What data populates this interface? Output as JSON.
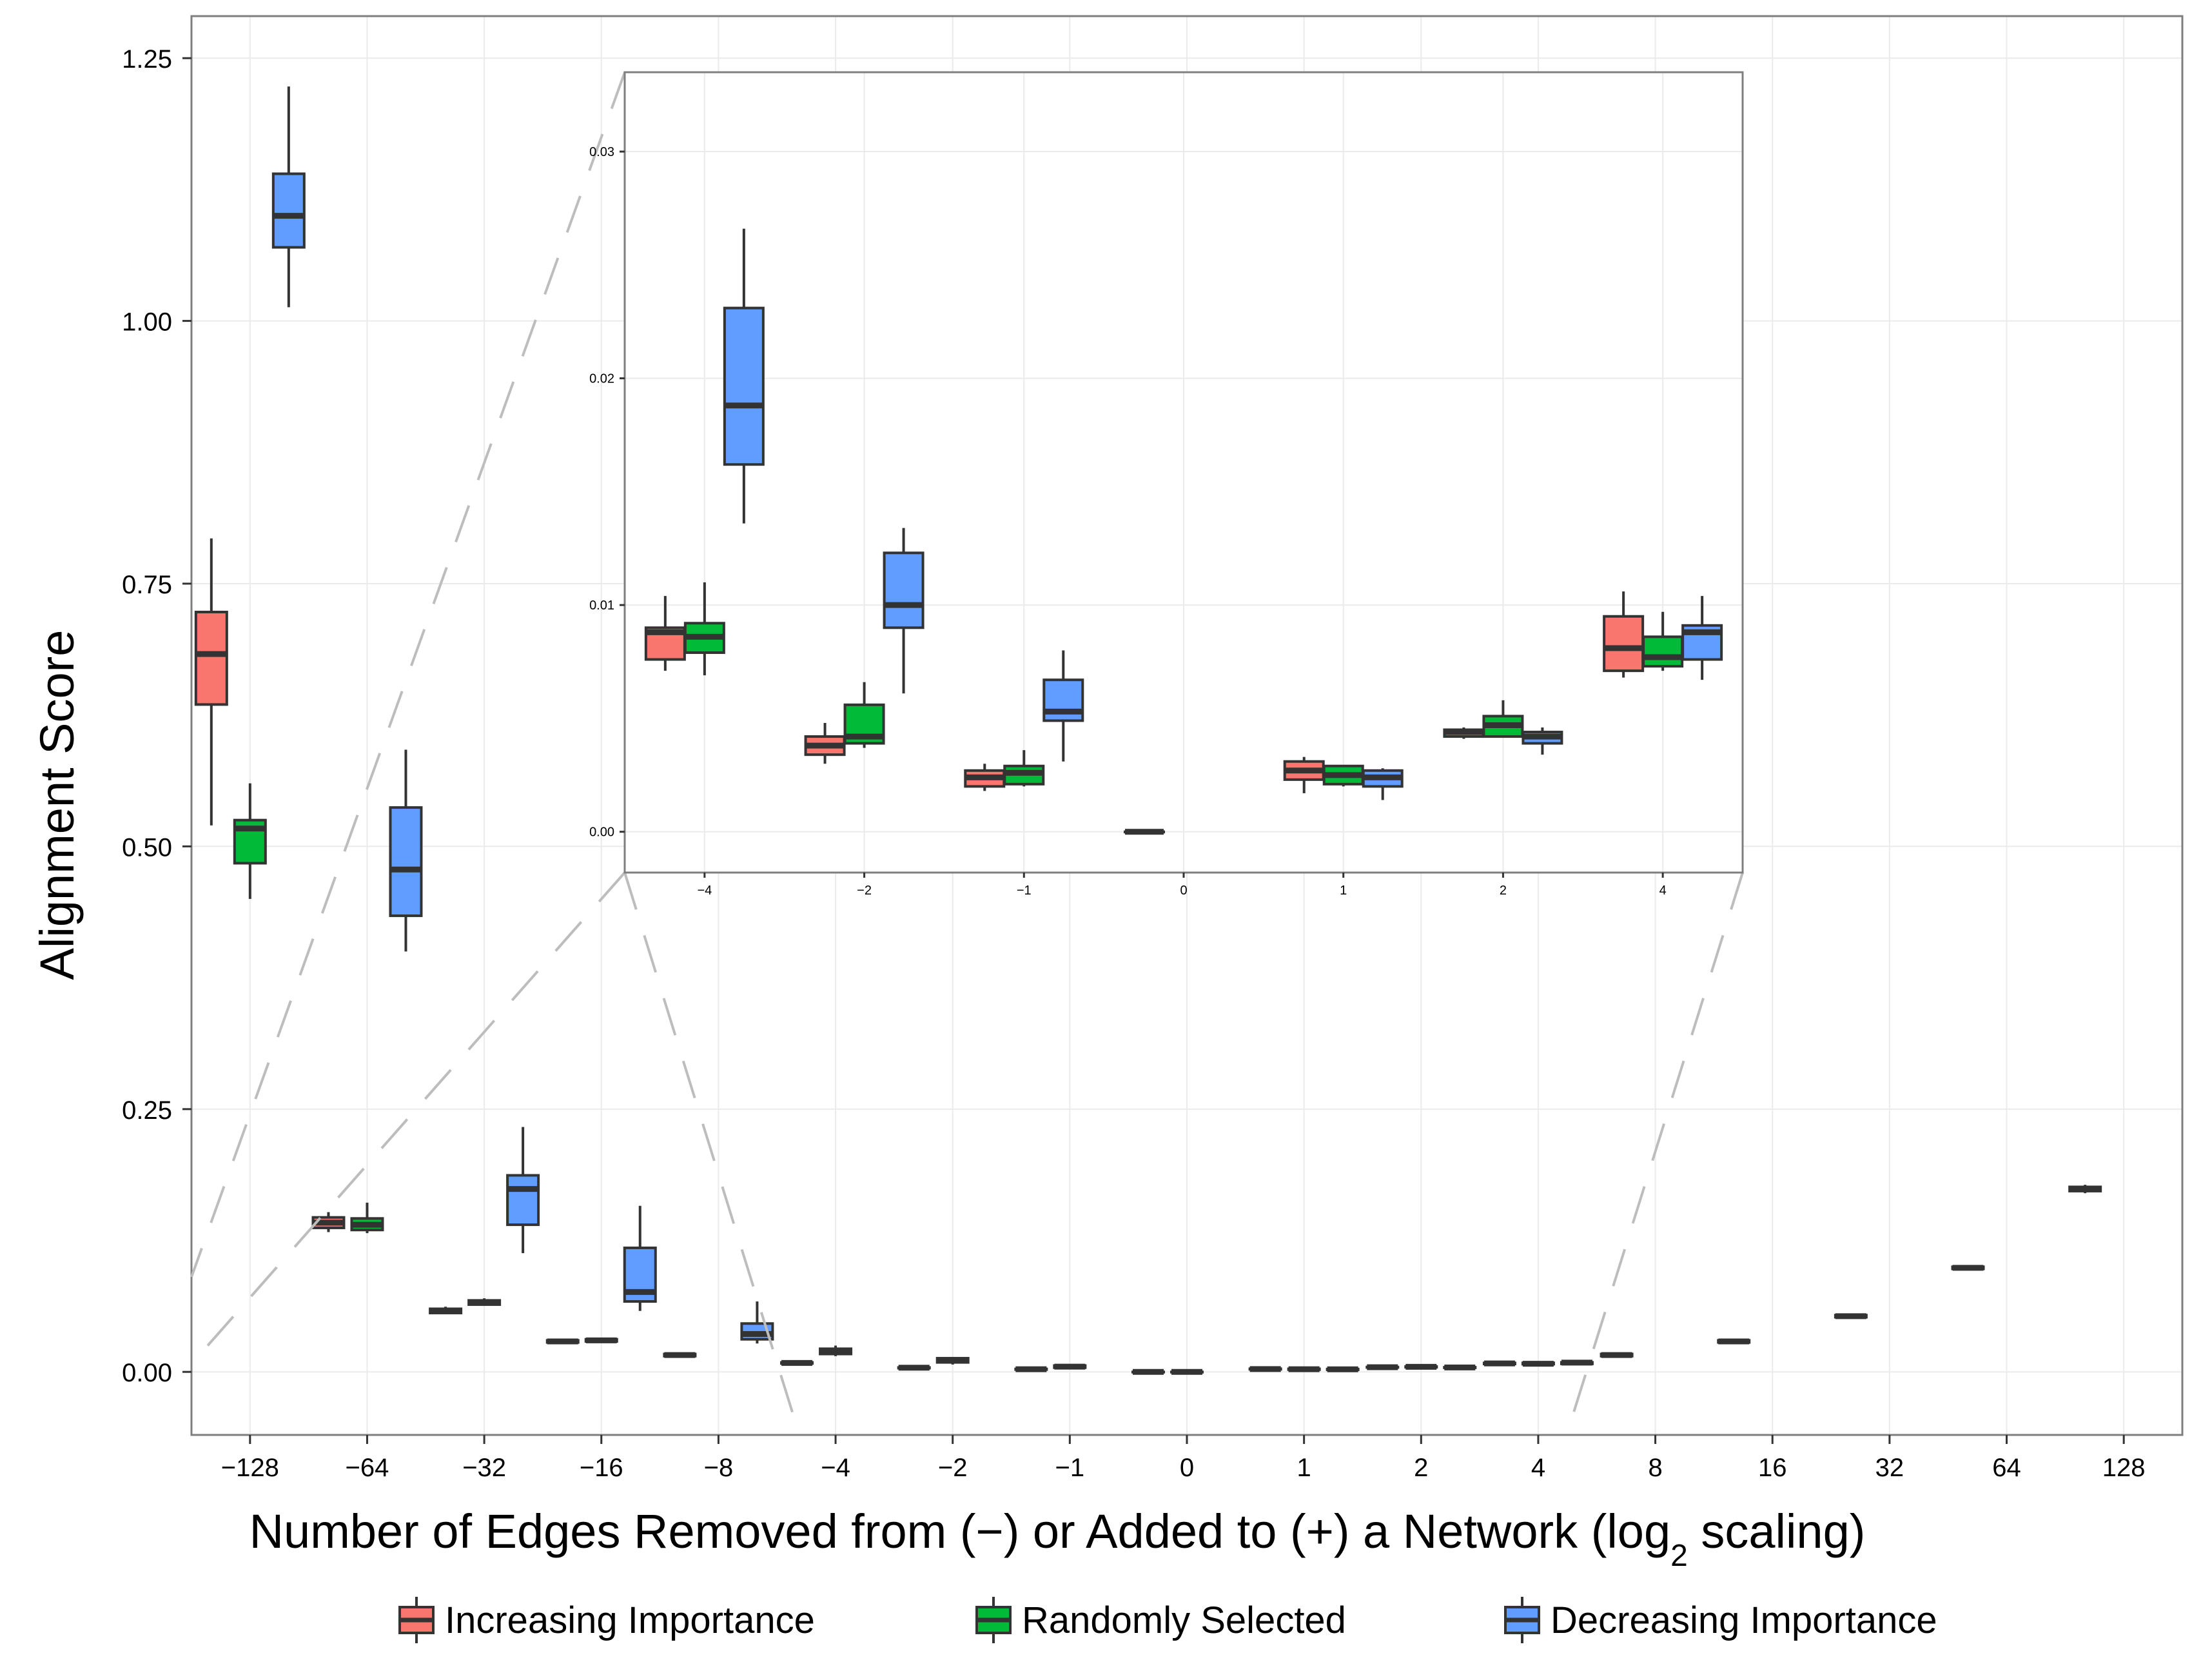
{
  "chart_data": {
    "type": "box",
    "ylabel": "Alignment Score",
    "xlabel": "Number of Edges Removed from (−) or Added to (+) a Network (log",
    "xlabel_sub": "2",
    "xlabel_tail": " scaling)",
    "ylim": [
      -0.06,
      1.29
    ],
    "ytick_values": [
      0.0,
      0.25,
      0.5,
      0.75,
      1.0,
      1.25
    ],
    "ytick_labels": [
      "0.00",
      "0.25",
      "0.50",
      "0.75",
      "1.00",
      "1.25"
    ],
    "categories": [
      "−128",
      "−64",
      "−32",
      "−16",
      "−8",
      "−4",
      "−2",
      "−1",
      "0",
      "1",
      "2",
      "4",
      "8",
      "16",
      "32",
      "64",
      "128"
    ],
    "legend": [
      "Increasing Importance",
      "Randomly Selected",
      "Decreasing Importance"
    ],
    "colors": [
      "#f8766d",
      "#00ba38",
      "#619cff"
    ],
    "series": [
      {
        "name": "Increasing Importance",
        "boxes": [
          [
            0.52,
            0.635,
            0.683,
            0.723,
            0.793
          ],
          [
            0.133,
            0.137,
            0.142,
            0.147,
            0.152
          ],
          [
            0.055,
            0.056,
            0.058,
            0.06,
            0.062
          ],
          [
            0.027,
            0.028,
            0.029,
            0.03,
            0.031
          ],
          [
            0.014,
            0.015,
            0.016,
            0.017,
            0.018
          ],
          [
            0.007,
            0.008,
            0.0085,
            0.009,
            0.01
          ],
          [
            0.003,
            0.0035,
            0.004,
            0.0042,
            0.005
          ],
          [
            0.002,
            0.0022,
            0.0025,
            0.0028,
            0.003
          ],
          [
            0.0,
            0.0,
            0.0,
            0.0,
            0.0
          ],
          [
            0.002,
            0.0024,
            0.0027,
            0.003,
            0.0033
          ],
          [
            0.004,
            0.0042,
            0.0044,
            0.0046,
            0.0048
          ],
          [
            0.007,
            0.0075,
            0.008,
            0.0085,
            0.009
          ],
          [
            0.014,
            0.015,
            0.016,
            0.017,
            0.018
          ],
          [
            0.027,
            0.028,
            0.029,
            0.03,
            0.031
          ],
          [
            0.051,
            0.052,
            0.053,
            0.054,
            0.055
          ],
          [
            0.097,
            0.098,
            0.099,
            0.1,
            0.101
          ],
          [
            0.17,
            0.172,
            0.174,
            0.176,
            0.178
          ]
        ]
      },
      {
        "name": "Randomly Selected",
        "boxes": [
          [
            0.45,
            0.484,
            0.517,
            0.525,
            0.56
          ],
          [
            0.132,
            0.135,
            0.14,
            0.146,
            0.161
          ],
          [
            0.063,
            0.064,
            0.066,
            0.068,
            0.07
          ],
          [
            0.028,
            0.029,
            0.03,
            0.031,
            0.032
          ],
          null,
          [
            0.015,
            0.017,
            0.02,
            0.022,
            0.025
          ],
          [
            0.007,
            0.009,
            0.011,
            0.013,
            0.014
          ],
          [
            0.003,
            0.004,
            0.005,
            0.006,
            0.007
          ],
          [
            0.0,
            0.0,
            0.0,
            0.0,
            0.0
          ],
          [
            0.002,
            0.0021,
            0.0025,
            0.0029,
            0.0031
          ],
          [
            0.0043,
            0.0044,
            0.0048,
            0.0051,
            0.0059
          ],
          [
            0.007,
            0.0073,
            0.0077,
            0.0086,
            0.0097
          ],
          null,
          null,
          null,
          null,
          null
        ]
      },
      {
        "name": "Decreasing Importance",
        "boxes": [
          [
            1.013,
            1.07,
            1.1,
            1.14,
            1.223
          ],
          [
            0.4,
            0.434,
            0.478,
            0.537,
            0.592
          ],
          [
            0.113,
            0.14,
            0.174,
            0.187,
            0.233
          ],
          [
            0.058,
            0.067,
            0.076,
            0.118,
            0.158
          ],
          [
            0.027,
            0.031,
            0.036,
            0.046,
            0.067
          ],
          null,
          null,
          null,
          null,
          [
            0.0015,
            0.002,
            0.0024,
            0.0027,
            0.0028
          ],
          [
            0.0034,
            0.0039,
            0.0042,
            0.0044,
            0.0046
          ],
          [
            0.0067,
            0.0076,
            0.0088,
            0.0091,
            0.0104
          ],
          null,
          null,
          null,
          null,
          null
        ]
      }
    ],
    "inset": {
      "ylim": [
        -0.0018,
        0.0335
      ],
      "ytick_values": [
        0.0,
        0.01,
        0.02,
        0.03
      ],
      "ytick_labels": [
        "0.00",
        "0.01",
        "0.02",
        "0.03"
      ],
      "categories": [
        "−4",
        "−2",
        "−1",
        "0",
        "1",
        "2",
        "4"
      ],
      "series": [
        {
          "name": "Increasing Importance",
          "boxes": [
            [
              0.0071,
              0.0076,
              0.0088,
              0.009,
              0.0104
            ],
            [
              0.003,
              0.0034,
              0.0038,
              0.0042,
              0.0048
            ],
            [
              0.0018,
              0.002,
              0.0024,
              0.0027,
              0.003
            ],
            [
              0.0,
              0.0,
              0.0,
              0.0,
              0.0
            ],
            [
              0.0017,
              0.0023,
              0.0027,
              0.0031,
              0.0033
            ],
            [
              0.0041,
              0.0042,
              0.0044,
              0.0045,
              0.0046
            ],
            [
              0.0068,
              0.0071,
              0.0081,
              0.0095,
              0.0106
            ]
          ]
        },
        {
          "name": "Randomly Selected",
          "boxes": [
            [
              0.0069,
              0.0079,
              0.0086,
              0.0092,
              0.011
            ],
            [
              0.0037,
              0.0039,
              0.0042,
              0.0056,
              0.0066
            ],
            [
              0.002,
              0.0021,
              0.0026,
              0.0029,
              0.0036
            ],
            null,
            [
              0.002,
              0.0021,
              0.0025,
              0.0029,
              0.0029
            ],
            [
              0.0042,
              0.0042,
              0.0047,
              0.0051,
              0.0058
            ],
            [
              0.0071,
              0.0073,
              0.0077,
              0.0086,
              0.0097
            ]
          ]
        },
        {
          "name": "Decreasing Importance",
          "boxes": [
            [
              0.0136,
              0.0162,
              0.0188,
              0.0231,
              0.0266
            ],
            [
              0.0061,
              0.009,
              0.01,
              0.0123,
              0.0134
            ],
            [
              0.0031,
              0.0049,
              0.0053,
              0.0067,
              0.008
            ],
            null,
            [
              0.0014,
              0.002,
              0.0024,
              0.0027,
              0.0028
            ],
            [
              0.0034,
              0.0039,
              0.0042,
              0.0044,
              0.0046
            ],
            [
              0.0067,
              0.0076,
              0.0088,
              0.0091,
              0.0104
            ]
          ]
        }
      ]
    }
  }
}
